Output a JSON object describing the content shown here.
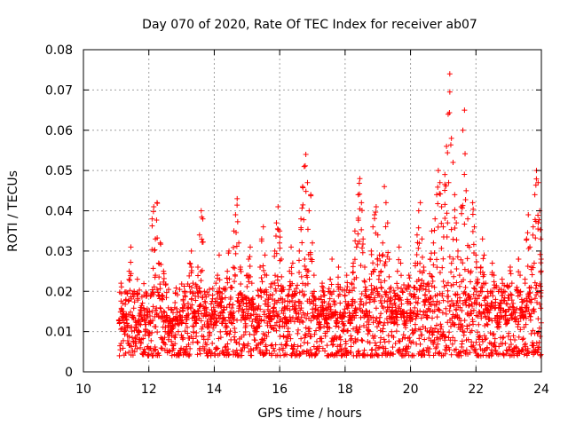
{
  "chart_data": {
    "type": "scatter",
    "title": "Day 070 of 2020, Rate Of TEC Index for receiver ab07",
    "xlabel": "GPS time / hours",
    "ylabel": "ROTI / TECUs",
    "xlim": [
      10,
      24
    ],
    "ylim": [
      0,
      0.08
    ],
    "xticks": [
      10,
      12,
      14,
      16,
      18,
      20,
      22,
      24
    ],
    "yticks": [
      0,
      0.01,
      0.02,
      0.03,
      0.04,
      0.05,
      0.06,
      0.07,
      0.08
    ],
    "xtick_labels": [
      "10",
      "12",
      "14",
      "16",
      "18",
      "20",
      "22",
      "24"
    ],
    "ytick_labels": [
      "0",
      "0.01",
      "0.02",
      "0.03",
      "0.04",
      "0.05",
      "0.06",
      "0.07",
      "0.08"
    ],
    "grid": true,
    "marker": "+",
    "color": "#ff0000",
    "series": [
      {
        "name": "ROTI",
        "points": [
          [
            11.1,
            0.012
          ],
          [
            11.15,
            0.022
          ],
          [
            11.2,
            0.015
          ],
          [
            11.25,
            0.01
          ],
          [
            11.3,
            0.018
          ],
          [
            11.35,
            0.009
          ],
          [
            11.4,
            0.025
          ],
          [
            11.45,
            0.031
          ],
          [
            11.5,
            0.014
          ],
          [
            11.55,
            0.02
          ],
          [
            11.6,
            0.011
          ],
          [
            11.65,
            0.023
          ],
          [
            11.7,
            0.008
          ],
          [
            11.75,
            0.016
          ],
          [
            11.8,
            0.013
          ],
          [
            11.85,
            0.019
          ],
          [
            11.9,
            0.01
          ],
          [
            11.95,
            0.015
          ],
          [
            12.0,
            0.009
          ],
          [
            12.05,
            0.012
          ],
          [
            12.1,
            0.038
          ],
          [
            12.15,
            0.041
          ],
          [
            12.2,
            0.033
          ],
          [
            12.25,
            0.042
          ],
          [
            12.3,
            0.027
          ],
          [
            12.35,
            0.032
          ],
          [
            12.4,
            0.019
          ],
          [
            12.45,
            0.025
          ],
          [
            12.5,
            0.01
          ],
          [
            12.55,
            0.014
          ],
          [
            12.6,
            0.008
          ],
          [
            12.65,
            0.012
          ],
          [
            12.7,
            0.009
          ],
          [
            12.75,
            0.011
          ],
          [
            12.8,
            0.007
          ],
          [
            12.85,
            0.013
          ],
          [
            12.9,
            0.01
          ],
          [
            12.95,
            0.015
          ],
          [
            13.0,
            0.012
          ],
          [
            13.05,
            0.018
          ],
          [
            13.1,
            0.02
          ],
          [
            13.15,
            0.014
          ],
          [
            13.2,
            0.017
          ],
          [
            13.25,
            0.027
          ],
          [
            13.3,
            0.03
          ],
          [
            13.35,
            0.022
          ],
          [
            13.4,
            0.015
          ],
          [
            13.45,
            0.012
          ],
          [
            13.5,
            0.026
          ],
          [
            13.55,
            0.034
          ],
          [
            13.6,
            0.04
          ],
          [
            13.65,
            0.038
          ],
          [
            13.7,
            0.02
          ],
          [
            13.75,
            0.016
          ],
          [
            13.8,
            0.011
          ],
          [
            13.85,
            0.009
          ],
          [
            13.9,
            0.013
          ],
          [
            13.95,
            0.019
          ],
          [
            14.0,
            0.015
          ],
          [
            14.05,
            0.022
          ],
          [
            14.1,
            0.024
          ],
          [
            14.15,
            0.029
          ],
          [
            14.2,
            0.018
          ],
          [
            14.25,
            0.012
          ],
          [
            14.3,
            0.016
          ],
          [
            14.35,
            0.01
          ],
          [
            14.4,
            0.025
          ],
          [
            14.45,
            0.03
          ],
          [
            14.5,
            0.021
          ],
          [
            14.55,
            0.014
          ],
          [
            14.6,
            0.035
          ],
          [
            14.65,
            0.039
          ],
          [
            14.7,
            0.043
          ],
          [
            14.75,
            0.032
          ],
          [
            14.8,
            0.026
          ],
          [
            14.85,
            0.019
          ],
          [
            14.9,
            0.015
          ],
          [
            14.95,
            0.011
          ],
          [
            15.0,
            0.024
          ],
          [
            15.05,
            0.028
          ],
          [
            15.1,
            0.031
          ],
          [
            15.15,
            0.022
          ],
          [
            15.2,
            0.017
          ],
          [
            15.25,
            0.013
          ],
          [
            15.3,
            0.01
          ],
          [
            15.35,
            0.019
          ],
          [
            15.4,
            0.026
          ],
          [
            15.45,
            0.033
          ],
          [
            15.5,
            0.036
          ],
          [
            15.55,
            0.029
          ],
          [
            15.6,
            0.024
          ],
          [
            15.65,
            0.018
          ],
          [
            15.7,
            0.014
          ],
          [
            15.75,
            0.011
          ],
          [
            15.8,
            0.022
          ],
          [
            15.85,
            0.03
          ],
          [
            15.9,
            0.037
          ],
          [
            15.95,
            0.041
          ],
          [
            16.0,
            0.035
          ],
          [
            16.05,
            0.028
          ],
          [
            16.1,
            0.021
          ],
          [
            16.15,
            0.016
          ],
          [
            16.2,
            0.012
          ],
          [
            16.25,
            0.019
          ],
          [
            16.3,
            0.025
          ],
          [
            16.35,
            0.031
          ],
          [
            16.4,
            0.027
          ],
          [
            16.45,
            0.02
          ],
          [
            16.5,
            0.015
          ],
          [
            16.55,
            0.013
          ],
          [
            16.6,
            0.03
          ],
          [
            16.65,
            0.038
          ],
          [
            16.7,
            0.046
          ],
          [
            16.75,
            0.051
          ],
          [
            16.8,
            0.054
          ],
          [
            16.85,
            0.047
          ],
          [
            16.9,
            0.04
          ],
          [
            16.95,
            0.044
          ],
          [
            17.0,
            0.032
          ],
          [
            17.05,
            0.024
          ],
          [
            17.1,
            0.018
          ],
          [
            17.15,
            0.014
          ],
          [
            17.2,
            0.011
          ],
          [
            17.25,
            0.016
          ],
          [
            17.3,
            0.022
          ],
          [
            17.35,
            0.019
          ],
          [
            17.4,
            0.013
          ],
          [
            17.45,
            0.01
          ],
          [
            17.5,
            0.017
          ],
          [
            17.55,
            0.023
          ],
          [
            17.6,
            0.028
          ],
          [
            17.65,
            0.02
          ],
          [
            17.7,
            0.015
          ],
          [
            17.75,
            0.012
          ],
          [
            17.8,
            0.026
          ],
          [
            17.85,
            0.021
          ],
          [
            17.9,
            0.014
          ],
          [
            17.95,
            0.01
          ],
          [
            18.0,
            0.019
          ],
          [
            18.05,
            0.024
          ],
          [
            18.1,
            0.017
          ],
          [
            18.15,
            0.012
          ],
          [
            18.2,
            0.022
          ],
          [
            18.25,
            0.027
          ],
          [
            18.3,
            0.035
          ],
          [
            18.35,
            0.031
          ],
          [
            18.4,
            0.044
          ],
          [
            18.45,
            0.048
          ],
          [
            18.5,
            0.042
          ],
          [
            18.55,
            0.033
          ],
          [
            18.6,
            0.026
          ],
          [
            18.65,
            0.019
          ],
          [
            18.7,
            0.014
          ],
          [
            18.75,
            0.023
          ],
          [
            18.8,
            0.03
          ],
          [
            18.85,
            0.036
          ],
          [
            18.9,
            0.039
          ],
          [
            18.95,
            0.041
          ],
          [
            19.0,
            0.034
          ],
          [
            19.05,
            0.029
          ],
          [
            19.1,
            0.025
          ],
          [
            19.15,
            0.032
          ],
          [
            19.2,
            0.046
          ],
          [
            19.25,
            0.042
          ],
          [
            19.3,
            0.037
          ],
          [
            19.35,
            0.028
          ],
          [
            19.4,
            0.021
          ],
          [
            19.45,
            0.016
          ],
          [
            19.5,
            0.012
          ],
          [
            19.55,
            0.019
          ],
          [
            19.6,
            0.025
          ],
          [
            19.65,
            0.031
          ],
          [
            19.7,
            0.027
          ],
          [
            19.75,
            0.02
          ],
          [
            19.8,
            0.015
          ],
          [
            19.85,
            0.011
          ],
          [
            19.9,
            0.018
          ],
          [
            19.95,
            0.024
          ],
          [
            20.0,
            0.017
          ],
          [
            20.05,
            0.013
          ],
          [
            20.1,
            0.021
          ],
          [
            20.15,
            0.027
          ],
          [
            20.2,
            0.034
          ],
          [
            20.25,
            0.04
          ],
          [
            20.3,
            0.042
          ],
          [
            20.35,
            0.033
          ],
          [
            20.4,
            0.026
          ],
          [
            20.45,
            0.019
          ],
          [
            20.5,
            0.014
          ],
          [
            20.55,
            0.022
          ],
          [
            20.6,
            0.028
          ],
          [
            20.65,
            0.035
          ],
          [
            20.7,
            0.032
          ],
          [
            20.75,
            0.038
          ],
          [
            20.8,
            0.044
          ],
          [
            20.85,
            0.05
          ],
          [
            20.9,
            0.047
          ],
          [
            20.95,
            0.041
          ],
          [
            21.0,
            0.036
          ],
          [
            21.05,
            0.049
          ],
          [
            21.1,
            0.056
          ],
          [
            21.15,
            0.064
          ],
          [
            21.2,
            0.074
          ],
          [
            21.25,
            0.058
          ],
          [
            21.3,
            0.052
          ],
          [
            21.35,
            0.044
          ],
          [
            21.4,
            0.037
          ],
          [
            21.45,
            0.03
          ],
          [
            21.5,
            0.024
          ],
          [
            21.55,
            0.041
          ],
          [
            21.6,
            0.06
          ],
          [
            21.65,
            0.065
          ],
          [
            21.7,
            0.045
          ],
          [
            21.75,
            0.038
          ],
          [
            21.8,
            0.031
          ],
          [
            21.85,
            0.025
          ],
          [
            21.9,
            0.042
          ],
          [
            21.95,
            0.036
          ],
          [
            22.0,
            0.029
          ],
          [
            22.05,
            0.023
          ],
          [
            22.1,
            0.019
          ],
          [
            22.15,
            0.026
          ],
          [
            22.2,
            0.033
          ],
          [
            22.25,
            0.029
          ],
          [
            22.3,
            0.022
          ],
          [
            22.35,
            0.017
          ],
          [
            22.4,
            0.013
          ],
          [
            22.45,
            0.02
          ],
          [
            22.5,
            0.027
          ],
          [
            22.55,
            0.024
          ],
          [
            22.6,
            0.018
          ],
          [
            22.65,
            0.014
          ],
          [
            22.7,
            0.011
          ],
          [
            22.75,
            0.017
          ],
          [
            22.8,
            0.023
          ],
          [
            22.85,
            0.02
          ],
          [
            22.9,
            0.015
          ],
          [
            22.95,
            0.012
          ],
          [
            23.0,
            0.019
          ],
          [
            23.05,
            0.026
          ],
          [
            23.1,
            0.022
          ],
          [
            23.15,
            0.016
          ],
          [
            23.2,
            0.013
          ],
          [
            23.25,
            0.021
          ],
          [
            23.3,
            0.028
          ],
          [
            23.35,
            0.024
          ],
          [
            23.4,
            0.018
          ],
          [
            23.45,
            0.014
          ],
          [
            23.5,
            0.023
          ],
          [
            23.55,
            0.033
          ],
          [
            23.6,
            0.039
          ],
          [
            23.65,
            0.031
          ],
          [
            23.7,
            0.026
          ],
          [
            23.75,
            0.036
          ],
          [
            23.8,
            0.044
          ],
          [
            23.85,
            0.05
          ],
          [
            23.9,
            0.047
          ],
          [
            23.95,
            0.04
          ],
          [
            23.98,
            0.033
          ],
          [
            23.99,
            0.028
          ]
        ],
        "baseline_band": [
          0.004,
          0.022
        ]
      }
    ]
  }
}
